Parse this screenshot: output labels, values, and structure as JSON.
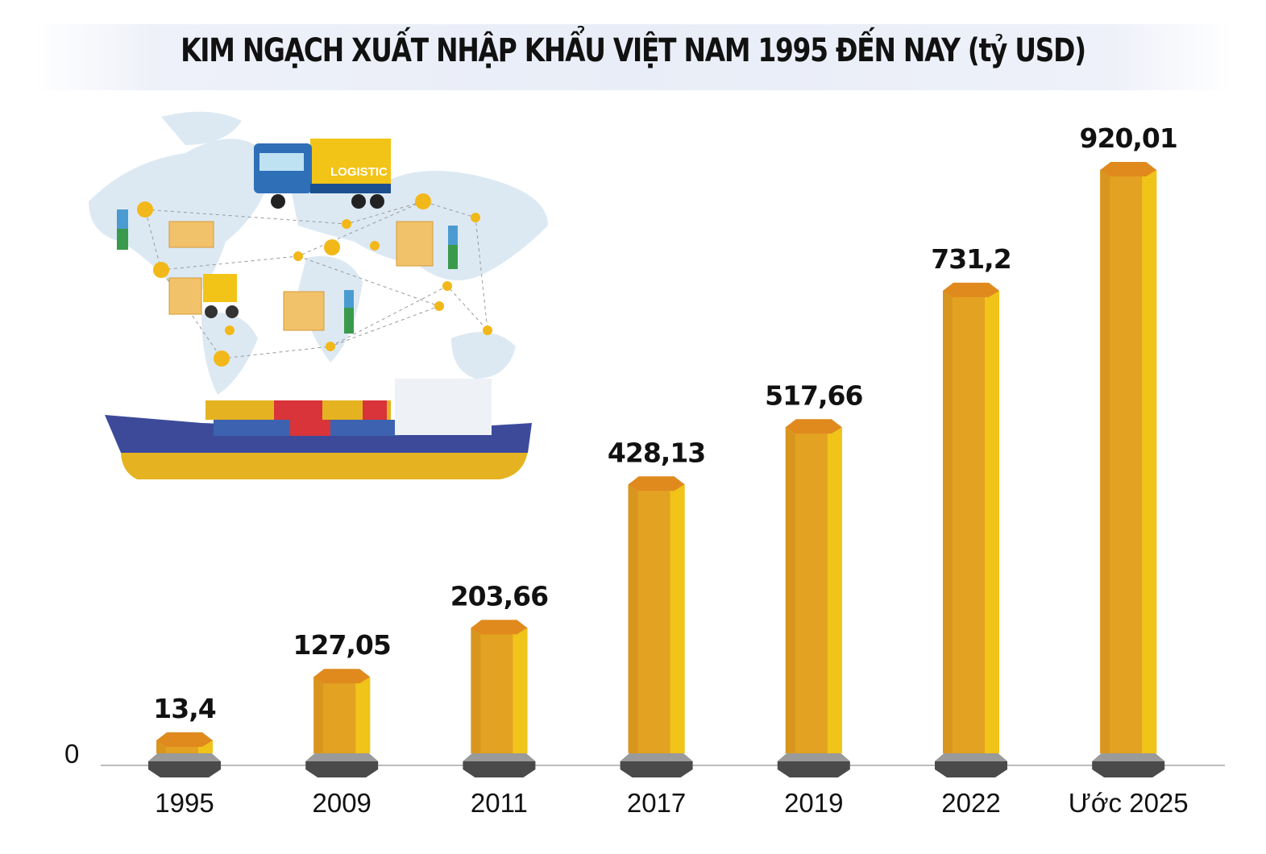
{
  "chart_data": {
    "type": "bar",
    "title": "KIM NGẠCH XUẤT NHẬP KHẨU VIỆT NAM 1995 ĐẾN NAY (tỷ USD)",
    "categories": [
      "1995",
      "2009",
      "2011",
      "2017",
      "2019",
      "2022",
      "Ước 2025"
    ],
    "values": [
      13.4,
      127.05,
      203.66,
      428.13,
      517.66,
      731.2,
      920.01
    ],
    "data_labels": [
      "13,4",
      "127,05",
      "203,66",
      "428,13",
      "517,66",
      "731,2",
      "920,01"
    ],
    "y_tick_labels": [
      "0"
    ],
    "ylim": [
      0,
      920.01
    ],
    "grid": false,
    "colors": {
      "bar_front": "#e3a221",
      "bar_side": "#f0c419",
      "bar_top": "#e08a1e",
      "base": "#555555",
      "axis": "#bbbbbb"
    },
    "illustration_text": "LOGISTIC"
  }
}
